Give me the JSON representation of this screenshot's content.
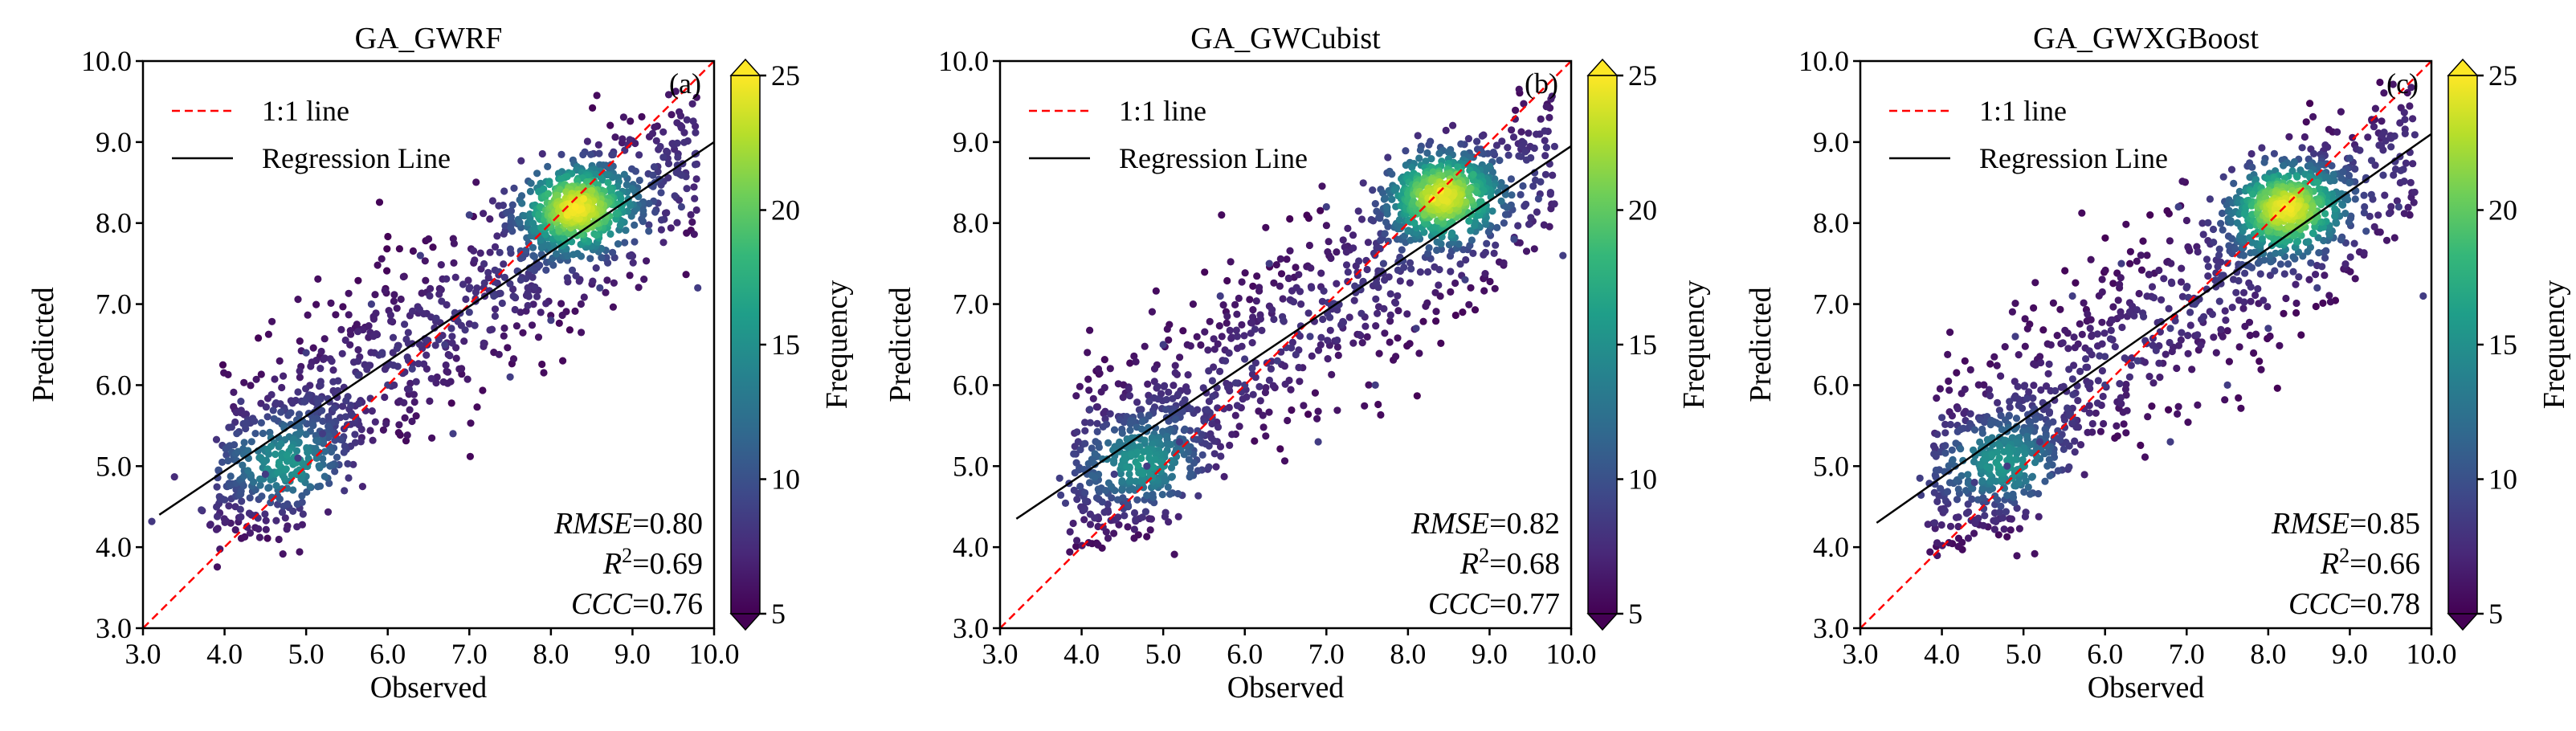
{
  "figure": {
    "colorbar": {
      "label": "Frequency",
      "ticks": [
        "5",
        "10",
        "15",
        "20",
        "25"
      ],
      "tick_values": [
        5,
        10,
        15,
        20,
        25
      ],
      "range": [
        5,
        25
      ],
      "colormap": [
        "#440154",
        "#482878",
        "#3e4989",
        "#31688e",
        "#26828e",
        "#1f9e89",
        "#35b779",
        "#6ece58",
        "#b5de2b",
        "#fde725"
      ]
    },
    "axes": {
      "xlabel": "Observed",
      "ylabel": "Predicted",
      "ticks": [
        "3.0",
        "4.0",
        "5.0",
        "6.0",
        "7.0",
        "8.0",
        "9.0",
        "10.0"
      ],
      "tick_values": [
        3,
        4,
        5,
        6,
        7,
        8,
        9,
        10
      ],
      "xlim": [
        3,
        10
      ],
      "ylim": [
        3,
        10
      ]
    },
    "legend": {
      "one_to_one": "1:1 line",
      "regression": "Regression Line",
      "one_to_one_color": "#ff0000",
      "regression_color": "#000000"
    },
    "metric_labels": {
      "rmse": "RMSE",
      "r": "R",
      "r_sup": "2",
      "ccc": "CCC"
    }
  },
  "chart_data": [
    {
      "type": "scatter",
      "title": "GA_GWRF",
      "panel_label": "(a)",
      "xlabel": "Observed",
      "ylabel": "Predicted",
      "xlim": [
        3,
        10
      ],
      "ylim": [
        3,
        10
      ],
      "regression": {
        "x": [
          3.2,
          10.0
        ],
        "y": [
          4.4,
          9.0
        ]
      },
      "metrics": {
        "rmse": "0.80",
        "r2": "0.69",
        "ccc": "0.76"
      },
      "density_core": {
        "x": 8.3,
        "y": 8.2
      },
      "points": [
        [
          4.5,
          4.9
        ],
        [
          4.9,
          5.1
        ],
        [
          5.2,
          5.4
        ],
        [
          5.6,
          5.6
        ],
        [
          6.0,
          6.0
        ],
        [
          6.3,
          6.2
        ],
        [
          6.7,
          6.5
        ],
        [
          7.0,
          6.9
        ],
        [
          7.3,
          7.1
        ],
        [
          7.6,
          7.4
        ],
        [
          7.9,
          7.7
        ],
        [
          8.1,
          7.9
        ],
        [
          8.2,
          8.1
        ],
        [
          8.3,
          8.2
        ],
        [
          8.4,
          8.3
        ],
        [
          8.5,
          8.4
        ],
        [
          8.7,
          8.5
        ],
        [
          8.9,
          8.6
        ],
        [
          5.0,
          6.4
        ],
        [
          5.8,
          7.0
        ],
        [
          6.4,
          7.6
        ],
        [
          7.0,
          8.1
        ],
        [
          4.2,
          5.8
        ],
        [
          6.8,
          5.4
        ],
        [
          7.5,
          6.1
        ],
        [
          8.0,
          6.8
        ],
        [
          8.6,
          7.2
        ],
        [
          9.2,
          7.9
        ],
        [
          9.6,
          8.2
        ],
        [
          9.8,
          7.2
        ]
      ]
    },
    {
      "type": "scatter",
      "title": "GA_GWCubist",
      "panel_label": "(b)",
      "xlabel": "Observed",
      "ylabel": "Predicted",
      "xlim": [
        3,
        10
      ],
      "ylim": [
        3,
        10
      ],
      "regression": {
        "x": [
          3.2,
          10.0
        ],
        "y": [
          4.35,
          8.95
        ]
      },
      "metrics": {
        "rmse": "0.82",
        "r2": "0.68",
        "ccc": "0.77"
      },
      "density_core": {
        "x": 8.4,
        "y": 8.35
      },
      "points": [
        [
          4.4,
          4.9
        ],
        [
          4.8,
          5.0
        ],
        [
          5.2,
          5.3
        ],
        [
          5.6,
          5.6
        ],
        [
          6.0,
          6.0
        ],
        [
          6.4,
          6.3
        ],
        [
          6.8,
          6.6
        ],
        [
          7.1,
          7.0
        ],
        [
          7.4,
          7.2
        ],
        [
          7.7,
          7.5
        ],
        [
          8.0,
          7.9
        ],
        [
          8.2,
          8.1
        ],
        [
          8.3,
          8.3
        ],
        [
          8.4,
          8.4
        ],
        [
          8.5,
          8.5
        ],
        [
          8.6,
          8.6
        ],
        [
          8.8,
          8.6
        ],
        [
          9.0,
          8.7
        ],
        [
          5.0,
          6.5
        ],
        [
          5.7,
          7.1
        ],
        [
          6.3,
          7.5
        ],
        [
          7.0,
          8.2
        ],
        [
          4.1,
          5.7
        ],
        [
          6.9,
          5.3
        ],
        [
          7.6,
          6.0
        ],
        [
          8.1,
          6.7
        ],
        [
          8.7,
          7.3
        ],
        [
          9.3,
          7.8
        ],
        [
          9.6,
          8.3
        ],
        [
          9.9,
          7.6
        ]
      ]
    },
    {
      "type": "scatter",
      "title": "GA_GWXGBoost",
      "panel_label": "(c)",
      "xlabel": "Observed",
      "ylabel": "Predicted",
      "xlim": [
        3,
        10
      ],
      "ylim": [
        3,
        10
      ],
      "regression": {
        "x": [
          3.2,
          10.0
        ],
        "y": [
          4.3,
          9.1
        ]
      },
      "metrics": {
        "rmse": "0.85",
        "r2": "0.66",
        "ccc": "0.78"
      },
      "density_core": {
        "x": 8.2,
        "y": 8.2
      },
      "points": [
        [
          4.4,
          4.8
        ],
        [
          4.8,
          5.0
        ],
        [
          5.2,
          5.3
        ],
        [
          5.6,
          5.6
        ],
        [
          6.0,
          6.0
        ],
        [
          6.4,
          6.3
        ],
        [
          6.8,
          6.7
        ],
        [
          7.1,
          7.0
        ],
        [
          7.4,
          7.3
        ],
        [
          7.7,
          7.6
        ],
        [
          8.0,
          7.9
        ],
        [
          8.1,
          8.1
        ],
        [
          8.2,
          8.2
        ],
        [
          8.3,
          8.3
        ],
        [
          8.4,
          8.4
        ],
        [
          8.6,
          8.5
        ],
        [
          8.8,
          8.6
        ],
        [
          9.0,
          8.8
        ],
        [
          4.9,
          6.6
        ],
        [
          5.6,
          7.1
        ],
        [
          6.2,
          7.5
        ],
        [
          6.9,
          8.2
        ],
        [
          4.0,
          5.6
        ],
        [
          6.8,
          5.3
        ],
        [
          7.5,
          6.0
        ],
        [
          8.0,
          6.7
        ],
        [
          8.6,
          7.2
        ],
        [
          9.2,
          7.9
        ],
        [
          9.6,
          8.2
        ],
        [
          9.9,
          7.1
        ]
      ]
    }
  ]
}
